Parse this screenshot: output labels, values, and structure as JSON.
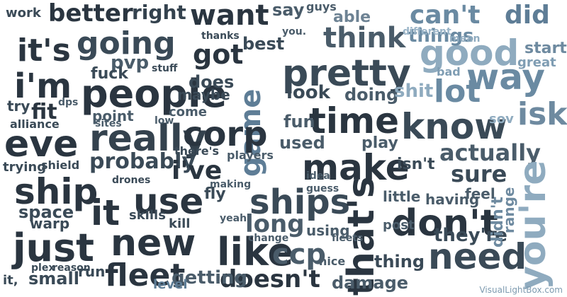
{
  "words": [
    "better",
    "right",
    "want",
    "say",
    "guys",
    "able",
    "can't",
    "did",
    "work",
    "it's",
    "going",
    "got",
    "think",
    "good",
    "things",
    "pretty",
    "i'm",
    "people",
    "way",
    "lot",
    "game",
    "time",
    "know",
    "isk",
    "eve",
    "really",
    "corp",
    "actually",
    "ship",
    "probably",
    "i've",
    "make",
    "sure",
    "use",
    "ships",
    "that's",
    "don't",
    "you're",
    "it",
    "just",
    "new",
    "like",
    "ccp",
    "need",
    "fleet",
    "doesn't",
    "getting",
    "thing",
    "long",
    "play",
    "used",
    "fun",
    "look",
    "doing",
    "shit",
    "start",
    "great",
    "pvp",
    "fuck",
    "best",
    "does",
    "maybe",
    "come",
    "point",
    "fit",
    "try",
    "dps",
    "low",
    "alliance",
    "trying",
    "shield",
    "space",
    "warp",
    "small",
    "run",
    "skills",
    "kill",
    "fly",
    "players",
    "there's",
    "little",
    "having",
    "feel",
    "damage",
    "making",
    "using",
    "post",
    "they're",
    "didn't",
    "range",
    "sov",
    "bad",
    "mean",
    "different",
    "level",
    "stuff",
    "thanks",
    "you.",
    "idea",
    "guess",
    "isn't",
    "fleets",
    "yeah",
    "change",
    "nice",
    "plex",
    "reason",
    "drones",
    "sites",
    "it,"
  ],
  "watermark": "VisualLightBox.com",
  "colors": {
    "dark": "#2a3540",
    "mid": "#4a5c6a",
    "light": "#7f9db3",
    "pale": "#a9c1d2"
  }
}
